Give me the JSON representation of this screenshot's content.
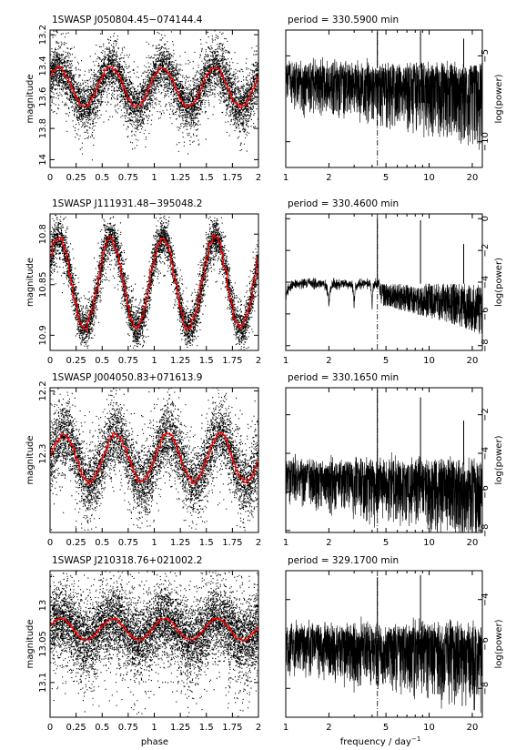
{
  "figure": {
    "ylabel_left": "magnitude",
    "ylabel_right": "log(power)",
    "xlabel_left": "phase",
    "xlabel_right_base": "frequency / day",
    "xlabel_right_sup": "−1"
  },
  "chart_data": [
    {
      "type": "scatter",
      "title": "1SWASP J050804.45−074144.4",
      "xlabel": "phase",
      "ylabel": "magnitude",
      "xlim": [
        0,
        2
      ],
      "ylim": [
        14.05,
        13.17
      ],
      "y_inverted": true,
      "x_ticks": [
        "0",
        "0.25",
        "0.5",
        "0.75",
        "1",
        "1.25",
        "1.5",
        "1.75",
        "2"
      ],
      "y_ticks": [
        13.2,
        13.4,
        13.6,
        13.8,
        14
      ],
      "y_tick_labels": [
        "13.2",
        "13.4",
        "13.6",
        "13.8",
        "14"
      ],
      "folded_model": {
        "name": "binned mean",
        "color": "#ff0000",
        "period_cycles": 0.5,
        "max_mag": 13.41,
        "min_mag": 13.66,
        "min_phase": 0.33
      },
      "scatter_spread": 0.16
    },
    {
      "type": "line",
      "title": "period = 330.5900 min",
      "xlabel": "frequency / day⁻¹",
      "ylabel": "log(power)",
      "x_log": true,
      "xlim": [
        1,
        23.5
      ],
      "ylim": [
        -11.5,
        -3.5
      ],
      "x_ticks": [
        1,
        2,
        5,
        10,
        20
      ],
      "x_tick_labels": [
        "1",
        "2",
        "5",
        "10",
        "20"
      ],
      "y_ticks": [
        -5,
        -10
      ],
      "y_tick_labels": [
        "−5",
        "−10"
      ],
      "dashdot_marker_freq": 4.36,
      "peaks": [
        {
          "freq": 4.355,
          "logp": -3.6
        },
        {
          "freq": 8.71,
          "logp": -3.55
        },
        {
          "freq": 17.42,
          "logp": -4.0
        }
      ],
      "noise_base": -5.7,
      "noise_depth": 4.2
    },
    {
      "type": "scatter",
      "title": "1SWASP J111931.48−395048.2",
      "xlabel": "phase",
      "ylabel": "magnitude",
      "xlim": [
        0,
        2
      ],
      "ylim": [
        10.915,
        10.78
      ],
      "y_inverted": true,
      "x_ticks": [
        "0",
        "0.25",
        "0.5",
        "0.75",
        "1",
        "1.25",
        "1.5",
        "1.75",
        "2"
      ],
      "y_ticks": [
        10.8,
        10.85,
        10.9
      ],
      "y_tick_labels": [
        "10.8",
        "10.85",
        "10.9"
      ],
      "folded_model": {
        "name": "binned mean",
        "color": "#ff0000",
        "period_cycles": 0.5,
        "max_mag": 10.803,
        "min_mag": 10.893,
        "min_phase": 0.33
      },
      "scatter_spread": 0.018
    },
    {
      "type": "line",
      "title": "period = 330.4600 min",
      "xlabel": "frequency / day⁻¹",
      "ylabel": "log(power)",
      "x_log": true,
      "xlim": [
        1,
        23.5
      ],
      "ylim": [
        -8.3,
        0.3
      ],
      "x_ticks": [
        1,
        2,
        5,
        10,
        20
      ],
      "x_tick_labels": [
        "1",
        "2",
        "5",
        "10",
        "20"
      ],
      "y_ticks": [
        0,
        -2,
        -4,
        -6,
        -8
      ],
      "y_tick_labels": [
        "0",
        "−2",
        "−4",
        "−6",
        "−8"
      ],
      "dashdot_marker_freq": 4.36,
      "peaks": [
        {
          "freq": 4.355,
          "logp": 0.0
        },
        {
          "freq": 8.71,
          "logp": -0.1
        },
        {
          "freq": 17.42,
          "logp": -1.6
        }
      ],
      "noise_base": -4.1,
      "noise_depth": 2.7
    },
    {
      "type": "scatter",
      "title": "1SWASP J004050.83+071613.9",
      "xlabel": "phase",
      "ylabel": "magnitude",
      "xlim": [
        0,
        2
      ],
      "ylim": [
        12.425,
        12.195
      ],
      "y_inverted": true,
      "x_ticks": [
        "0",
        "0.25",
        "0.5",
        "0.75",
        "1",
        "1.25",
        "1.5",
        "1.75",
        "2"
      ],
      "y_ticks": [
        12.2,
        12.3
      ],
      "y_tick_labels": [
        "12.2",
        "12.3"
      ],
      "folded_model": {
        "name": "binned mean",
        "color": "#ff0000",
        "period_cycles": 0.5,
        "max_mag": 12.268,
        "min_mag": 12.345,
        "min_phase": 0.38
      },
      "scatter_spread": 0.05
    },
    {
      "type": "line",
      "title": "period = 330.1650 min",
      "xlabel": "frequency / day⁻¹",
      "ylabel": "log(power)",
      "x_log": true,
      "xlim": [
        1,
        23.5
      ],
      "ylim": [
        -8.1,
        -0.6
      ],
      "x_ticks": [
        1,
        2,
        5,
        10,
        20
      ],
      "x_tick_labels": [
        "1",
        "2",
        "5",
        "10",
        "20"
      ],
      "y_ticks": [
        -2,
        -4,
        -6,
        -8
      ],
      "y_tick_labels": [
        "−2",
        "−4",
        "−6",
        "−8"
      ],
      "dashdot_marker_freq": 4.36,
      "peaks": [
        {
          "freq": 4.355,
          "logp": -0.7
        },
        {
          "freq": 8.71,
          "logp": -1.1
        },
        {
          "freq": 17.42,
          "logp": -2.3
        }
      ],
      "noise_base": -4.6,
      "noise_depth": 3.6
    },
    {
      "type": "scatter",
      "title": "1SWASP J210318.76+021002.2",
      "xlabel": "phase",
      "ylabel": "magnitude",
      "xlim": [
        0,
        2
      ],
      "ylim": [
        13.145,
        12.955
      ],
      "y_inverted": true,
      "x_ticks": [
        "0",
        "0.25",
        "0.5",
        "0.75",
        "1",
        "1.25",
        "1.5",
        "1.75",
        "2"
      ],
      "y_ticks": [
        13.0,
        13.05,
        13.1
      ],
      "y_tick_labels": [
        "13",
        "13.05",
        "13.1"
      ],
      "folded_model": {
        "name": "binned mean",
        "color": "#ff0000",
        "period_cycles": 0.5,
        "max_mag": 13.017,
        "min_mag": 13.045,
        "min_phase": 0.35
      },
      "scatter_spread": 0.045
    },
    {
      "type": "line",
      "title": "period = 329.1700 min",
      "xlabel": "frequency / day⁻¹",
      "ylabel": "log(power)",
      "x_log": true,
      "xlim": [
        1,
        23.5
      ],
      "ylim": [
        -9.3,
        -2.7
      ],
      "x_ticks": [
        1,
        2,
        5,
        10,
        20
      ],
      "x_tick_labels": [
        "1",
        "2",
        "5",
        "10",
        "20"
      ],
      "y_ticks": [
        -4,
        -6,
        -8
      ],
      "y_tick_labels": [
        "−4",
        "−6",
        "−8"
      ],
      "dashdot_marker_freq": 4.36,
      "peaks": [
        {
          "freq": 4.355,
          "logp": -3.0
        },
        {
          "freq": 8.71,
          "logp": -2.9
        }
      ],
      "noise_base": -5.4,
      "noise_depth": 3.2
    }
  ]
}
